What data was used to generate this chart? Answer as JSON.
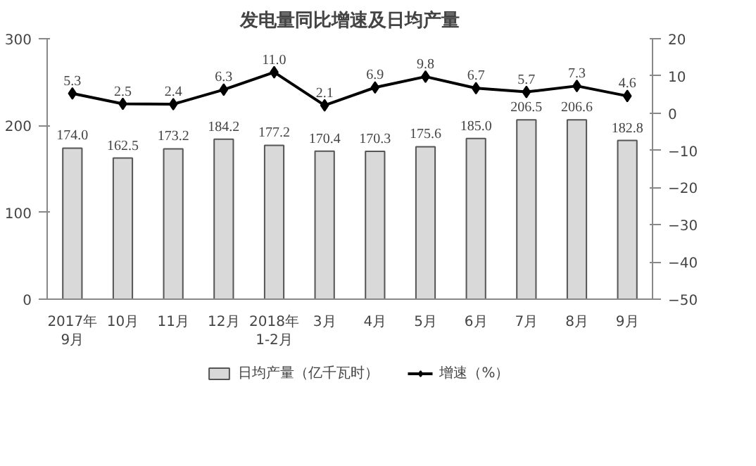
{
  "chart_data": {
    "type": "bar",
    "title": "发电量同比增速及日均产量",
    "categories": [
      "2017年\n9月",
      "10月",
      "11月",
      "12月",
      "2018年\n1-2月",
      "3月",
      "4月",
      "5月",
      "6月",
      "7月",
      "8月",
      "9月"
    ],
    "series": [
      {
        "name": "日均产量（亿千瓦时）",
        "value_labels": [
          "174.0",
          "162.5",
          "173.2",
          "184.2",
          "177.2",
          "170.4",
          "170.3",
          "175.6",
          "185.0",
          "206.5",
          "206.6",
          "182.8"
        ],
        "color": "#d9d9d9",
        "values": [
          174.0,
          162.5,
          173.2,
          184.2,
          177.2,
          170.4,
          170.3,
          175.6,
          185.0,
          206.5,
          206.6,
          182.8
        ]
      },
      {
        "name": "增速（%）",
        "type": "line",
        "axis": "y2",
        "color": "#000000",
        "marker": "diamond",
        "value_labels": [
          "5.3",
          "2.5",
          "2.4",
          "6.3",
          "11.0",
          "2.1",
          "6.9",
          "9.8",
          "6.7",
          "5.7",
          "7.3",
          "4.6"
        ],
        "values": [
          5.3,
          2.5,
          2.4,
          6.3,
          11.0,
          2.1,
          6.9,
          9.8,
          6.7,
          5.7,
          7.3,
          4.6
        ]
      }
    ],
    "ylim": [
      0,
      300
    ],
    "yticks": [
      0,
      100,
      200,
      300
    ],
    "y2lim": [
      -50,
      20
    ],
    "y2ticks": [
      -50,
      -40,
      -30,
      -20,
      -10,
      0,
      10,
      20
    ],
    "grid": false,
    "legend": "bottom"
  }
}
